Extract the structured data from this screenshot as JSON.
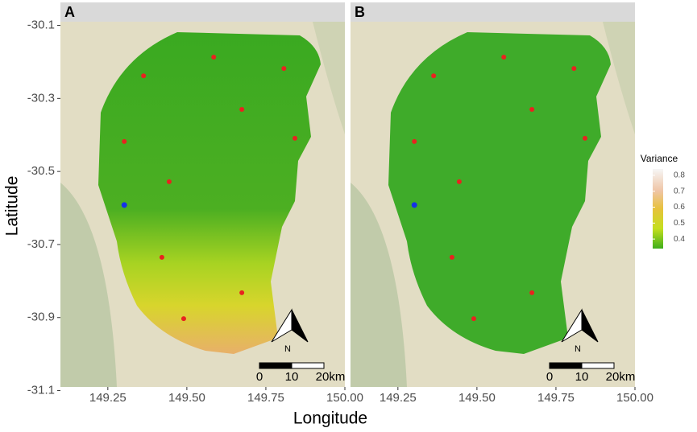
{
  "x_label": "Longitude",
  "y_label": "Latitude",
  "xlim": [
    149.1,
    150.0
  ],
  "ylim": [
    -31.09,
    -30.09
  ],
  "xticks": [
    149.25,
    {
      "value": 149.5,
      "label": "149.50"
    },
    149.75,
    {
      "value": 150.0,
      "label": "150.00"
    }
  ],
  "yticks": [
    -30.1,
    -30.3,
    -30.5,
    -30.7,
    -30.9,
    -31.1
  ],
  "panels": [
    {
      "label": "A"
    },
    {
      "label": "B"
    }
  ],
  "sites": {
    "color": "#e8231f",
    "lon": [
      149.585,
      149.807,
      149.363,
      149.674,
      149.302,
      149.842,
      149.444,
      149.421,
      149.674,
      149.49
    ],
    "lat": [
      -30.187,
      -30.218,
      -30.238,
      -30.33,
      -30.418,
      -30.409,
      -30.528,
      -30.735,
      -30.832,
      -30.903
    ]
  },
  "reference_site": {
    "color": "#1432e6",
    "lon": 149.302,
    "lat": -30.592
  },
  "legend": {
    "title": "Variance",
    "lim": [
      0.34,
      0.84
    ],
    "ticks": [
      0.4,
      0.5,
      0.6,
      0.7,
      0.8
    ]
  },
  "scale_bar": {
    "labels": [
      "0",
      "10",
      "20km"
    ]
  },
  "north_arrow": "N"
}
